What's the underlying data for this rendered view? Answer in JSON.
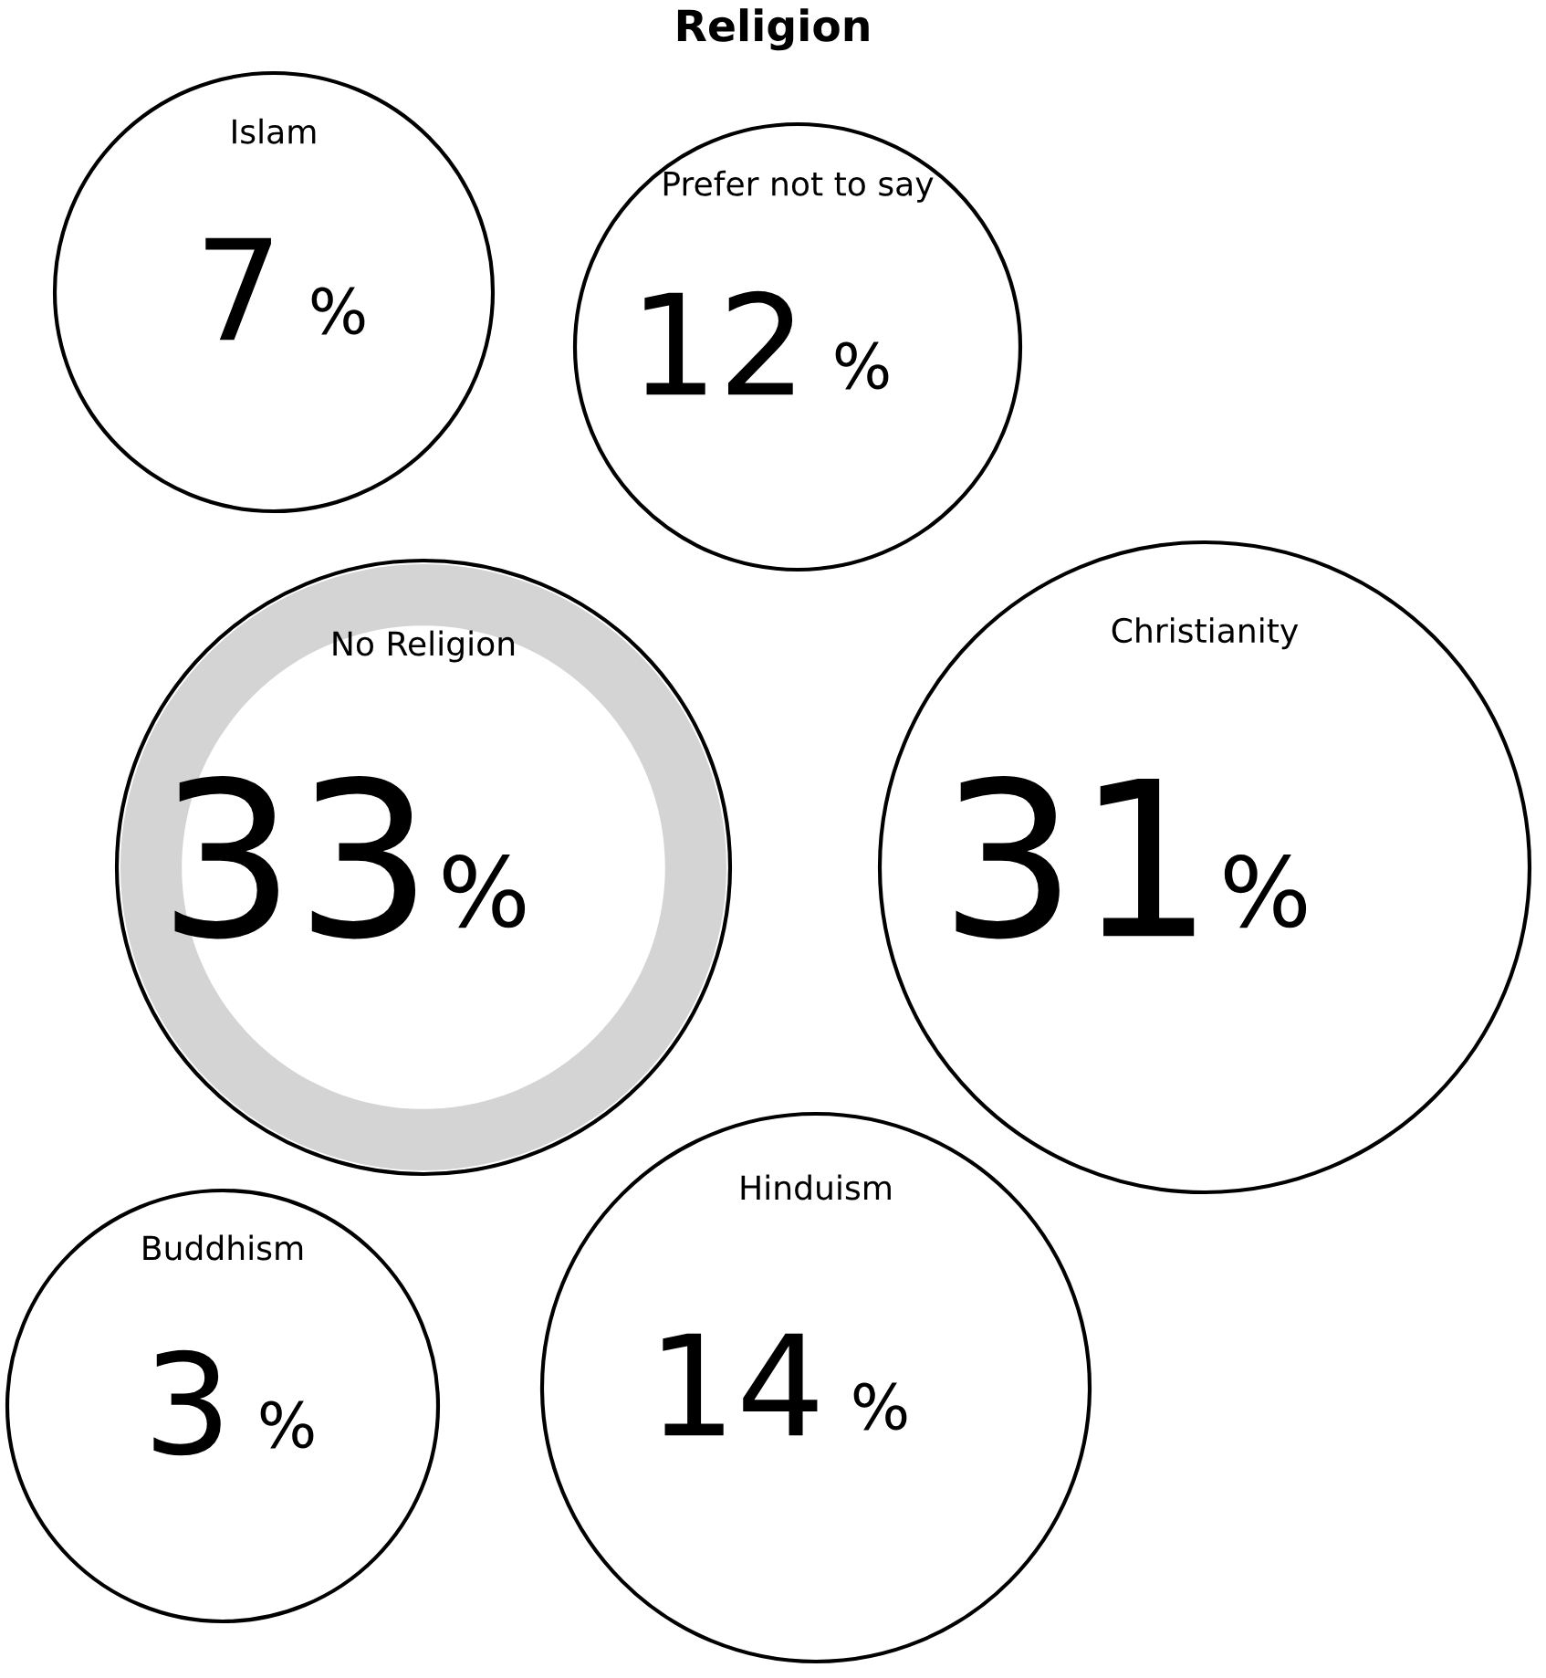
{
  "chart_data": {
    "type": "other",
    "title": "Religion",
    "categories": [
      "Islam",
      "Prefer not to say",
      "No Religion",
      "Christianity",
      "Buddhism",
      "Hinduism"
    ],
    "values": [
      7,
      12,
      33,
      31,
      3,
      14
    ],
    "value_labels": [
      "7 %",
      "12 %",
      "33%",
      "31%",
      "3 %",
      "14 %"
    ]
  }
}
